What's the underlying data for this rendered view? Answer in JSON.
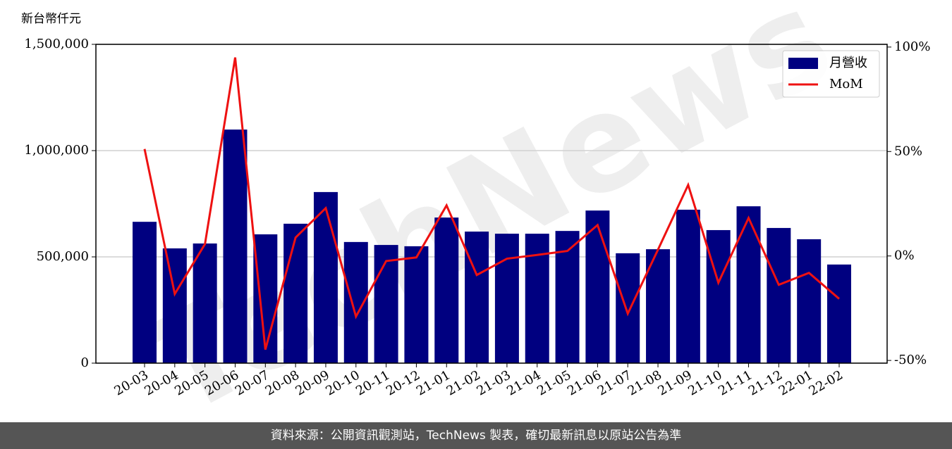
{
  "chart_data": {
    "type": "bar_line",
    "y_axis_label": "新台幣仟元",
    "watermark": "TechNews",
    "footer": "資料來源：公開資訊觀測站，TechNews 製表，確切最新訊息以原站公告為準",
    "categories": [
      "20-03",
      "20-04",
      "20-05",
      "20-06",
      "20-07",
      "20-08",
      "20-09",
      "20-10",
      "20-11",
      "20-12",
      "21-01",
      "21-02",
      "21-03",
      "21-04",
      "21-05",
      "21-06",
      "21-07",
      "21-08",
      "21-09",
      "21-10",
      "21-11",
      "21-12",
      "22-01",
      "22-02"
    ],
    "series": [
      {
        "name": "月營收",
        "type": "bar",
        "color": "#000080",
        "values": [
          665000,
          540000,
          563000,
          1099000,
          606000,
          656000,
          805000,
          570000,
          556000,
          550000,
          685000,
          619000,
          609000,
          609000,
          622000,
          718000,
          517000,
          536000,
          722000,
          626000,
          738000,
          636000,
          583000,
          464000
        ]
      },
      {
        "name": "MoM",
        "type": "line",
        "axis": "y2",
        "color": "#ee1111",
        "values": [
          51.2,
          -18.2,
          5.7,
          95,
          -44.8,
          8.8,
          22.9,
          -29,
          -2.4,
          -0.7,
          24.2,
          -9.1,
          -1.3,
          0.5,
          2.4,
          14.8,
          -27.6,
          3,
          34,
          -12.8,
          18.2,
          -13.8,
          -8.1,
          -20.5
        ]
      }
    ],
    "ylim": [
      0,
      1500000
    ],
    "yticks": [
      0,
      {
        "value": 500000,
        "label": "500,000"
      },
      {
        "value": 1000000,
        "label": "1,000,000"
      },
      {
        "value": 1500000,
        "label": "1,500,000"
      }
    ],
    "y2lim": [
      -51.3,
      101.3
    ],
    "y2ticks": [
      {
        "value": -50,
        "label": "-50%"
      },
      {
        "value": 0,
        "label": "0%"
      },
      {
        "value": 50,
        "label": "50%"
      },
      {
        "value": 100,
        "label": "100%"
      }
    ],
    "grid": true,
    "legend": "upper right"
  }
}
